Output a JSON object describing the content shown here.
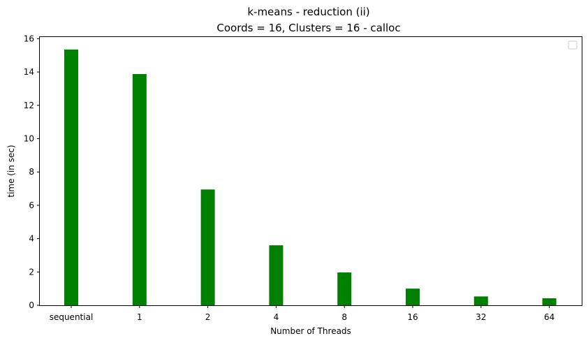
{
  "chart_data": {
    "type": "bar",
    "title": "k-means - reduction  (ii)",
    "subtitle": "Coords = 16, Clusters = 16 - calloc",
    "xlabel": "Number of Threads",
    "ylabel": "time (in sec)",
    "categories": [
      "sequential",
      "1",
      "2",
      "4",
      "8",
      "16",
      "32",
      "64"
    ],
    "values": [
      15.35,
      13.88,
      6.95,
      3.6,
      1.97,
      1.0,
      0.53,
      0.42
    ],
    "ylim": [
      0,
      16.1
    ],
    "yticks": [
      0,
      2,
      4,
      6,
      8,
      10,
      12,
      14,
      16
    ],
    "bar_color": "#008000",
    "grid": false,
    "legend": "top-right"
  }
}
